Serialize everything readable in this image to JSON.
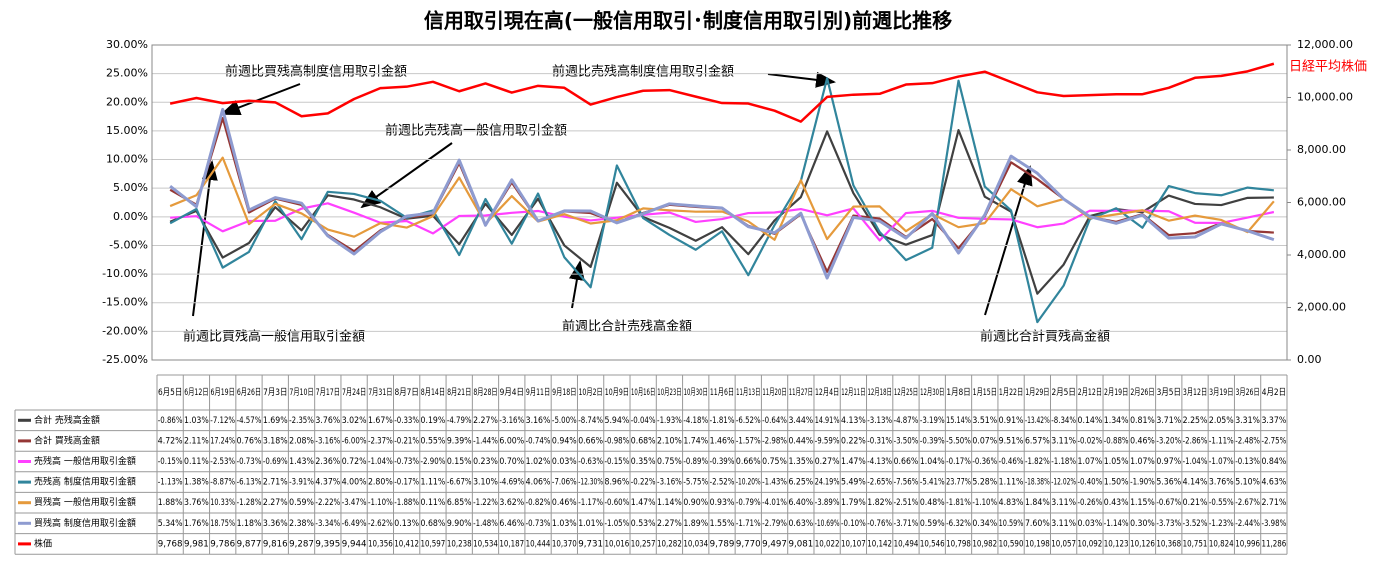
{
  "chart_data": {
    "type": "line",
    "title": "信用取引現在高(一般信用取引･制度信用取引別)前週比推移",
    "categories": [
      "6月5日",
      "6月12日",
      "6月19日",
      "6月26日",
      "7月3日",
      "7月10日",
      "7月17日",
      "7月24日",
      "7月31日",
      "8月7日",
      "8月14日",
      "8月21日",
      "8月28日",
      "9月4日",
      "9月11日",
      "9月18日",
      "10月2日",
      "10月9日",
      "10月16日",
      "10月23日",
      "10月30日",
      "11月6日",
      "11月13日",
      "11月20日",
      "11月27日",
      "12月4日",
      "12月11日",
      "12月18日",
      "12月25日",
      "12月30日",
      "1月8日",
      "1月15日",
      "1月22日",
      "1月29日",
      "2月5日",
      "2月12日",
      "2月19日",
      "2月26日",
      "3月5日",
      "3月12日",
      "3月19日",
      "3月26日",
      "4月2日"
    ],
    "series": [
      {
        "name": "合計 売残高金額",
        "color": "#404040",
        "values": [
          -0.86,
          1.03,
          -7.12,
          -4.57,
          1.69,
          -2.35,
          3.76,
          3.02,
          1.67,
          -0.33,
          0.19,
          -4.79,
          2.27,
          -3.16,
          3.16,
          -5.0,
          -8.74,
          5.94,
          -0.04,
          -1.93,
          -4.18,
          -1.81,
          -6.52,
          -0.64,
          3.44,
          14.91,
          4.13,
          -3.13,
          -4.87,
          -3.19,
          15.14,
          3.51,
          0.91,
          -13.42,
          -8.34,
          0.14,
          1.34,
          0.81,
          3.71,
          2.25,
          2.05,
          3.31,
          3.37
        ],
        "value_labels": [
          "-0.86%",
          "1.03%",
          "-7.12%",
          "-4.57%",
          "1.69%",
          "-2.35%",
          "3.76%",
          "3.02%",
          "1.67%",
          "-0.33%",
          "0.19%",
          "-4.79%",
          "2.27%",
          "-3.16%",
          "3.16%",
          "-5.00%",
          "-8.74%",
          "5.94%",
          "-0.04%",
          "-1.93%",
          "-4.18%",
          "-1.81%",
          "-6.52%",
          "-0.64%",
          "3.44%",
          "14.91%",
          "4.13%",
          "-3.13%",
          "-4.87%",
          "-3.19%",
          "15.14%",
          "3.51%",
          "0.91%",
          "-13.42%",
          "-8.34%",
          "0.14%",
          "1.34%",
          "0.81%",
          "3.71%",
          "2.25%",
          "2.05%",
          "3.31%",
          "3.37%"
        ]
      },
      {
        "name": "合計 買残高金額",
        "color": "#953735",
        "values": [
          4.72,
          2.11,
          17.24,
          0.76,
          3.18,
          2.08,
          -3.16,
          -6.0,
          -2.37,
          -0.21,
          0.55,
          9.39,
          -1.44,
          6.0,
          -0.74,
          0.94,
          0.66,
          -0.98,
          0.68,
          2.1,
          1.74,
          1.46,
          -1.57,
          -2.98,
          0.44,
          -9.59,
          0.22,
          -0.31,
          -3.5,
          -0.39,
          -5.5,
          0.07,
          9.51,
          6.57,
          3.11,
          -0.02,
          -0.88,
          0.46,
          -3.2,
          -2.86,
          -1.11,
          -2.48,
          -2.75
        ],
        "value_labels": [
          "4.72%",
          "2.11%",
          "17.24%",
          "0.76%",
          "3.18%",
          "2.08%",
          "-3.16%",
          "-6.00%",
          "-2.37%",
          "-0.21%",
          "0.55%",
          "9.39%",
          "-1.44%",
          "6.00%",
          "-0.74%",
          "0.94%",
          "0.66%",
          "-0.98%",
          "0.68%",
          "2.10%",
          "1.74%",
          "1.46%",
          "-1.57%",
          "-2.98%",
          "0.44%",
          "-9.59%",
          "0.22%",
          "-0.31%",
          "-3.50%",
          "-0.39%",
          "-5.50%",
          "0.07%",
          "9.51%",
          "6.57%",
          "3.11%",
          "-0.02%",
          "-0.88%",
          "0.46%",
          "-3.20%",
          "-2.86%",
          "-1.11%",
          "-2.48%",
          "-2.75%"
        ]
      },
      {
        "name": "売残高 一般信用取引金額",
        "color": "#ff40ff",
        "values": [
          -0.15,
          0.11,
          -2.53,
          -0.73,
          -0.69,
          1.43,
          2.36,
          0.72,
          -1.04,
          -0.73,
          -2.9,
          0.15,
          0.23,
          0.7,
          1.02,
          0.03,
          -0.63,
          -0.15,
          0.35,
          0.75,
          -0.89,
          -0.39,
          0.66,
          0.75,
          1.35,
          0.27,
          1.47,
          -4.13,
          0.66,
          1.04,
          -0.17,
          -0.36,
          -0.46,
          -1.82,
          -1.18,
          1.07,
          1.05,
          1.07,
          0.97,
          -1.04,
          -1.07,
          -0.13,
          0.84
        ],
        "value_labels": [
          "-0.15%",
          "0.11%",
          "-2.53%",
          "-0.73%",
          "-0.69%",
          "1.43%",
          "2.36%",
          "0.72%",
          "-1.04%",
          "-0.73%",
          "-2.90%",
          "0.15%",
          "0.23%",
          "0.70%",
          "1.02%",
          "0.03%",
          "-0.63%",
          "-0.15%",
          "0.35%",
          "0.75%",
          "-0.89%",
          "-0.39%",
          "0.66%",
          "0.75%",
          "1.35%",
          "0.27%",
          "1.47%",
          "-4.13%",
          "0.66%",
          "1.04%",
          "-0.17%",
          "-0.36%",
          "-0.46%",
          "-1.82%",
          "-1.18%",
          "1.07%",
          "1.05%",
          "1.07%",
          "0.97%",
          "-1.04%",
          "-1.07%",
          "-0.13%",
          "0.84%"
        ]
      },
      {
        "name": "売残高 制度信用取引金額",
        "color": "#31859c",
        "values": [
          -1.13,
          1.38,
          -8.87,
          -6.13,
          2.71,
          -3.91,
          4.37,
          4.0,
          2.8,
          -0.17,
          1.11,
          -6.67,
          3.1,
          -4.69,
          4.06,
          -7.06,
          -12.3,
          8.96,
          -0.22,
          -3.16,
          -5.75,
          -2.52,
          -10.2,
          -1.43,
          6.25,
          24.19,
          5.49,
          -2.65,
          -7.56,
          -5.41,
          23.77,
          5.28,
          1.11,
          -18.38,
          -12.02,
          -0.4,
          1.5,
          -1.9,
          5.36,
          4.14,
          3.76,
          5.1,
          4.63
        ],
        "value_labels": [
          "-1.13%",
          "1.38%",
          "-8.87%",
          "-6.13%",
          "2.71%",
          "-3.91%",
          "4.37%",
          "4.00%",
          "2.80%",
          "-0.17%",
          "1.11%",
          "-6.67%",
          "3.10%",
          "-4.69%",
          "4.06%",
          "-7.06%",
          "-12.30%",
          "8.96%",
          "-0.22%",
          "-3.16%",
          "-5.75%",
          "-2.52%",
          "-10.20%",
          "-1.43%",
          "6.25%",
          "24.19%",
          "5.49%",
          "-2.65%",
          "-7.56%",
          "-5.41%",
          "23.77%",
          "5.28%",
          "1.11%",
          "-18.38%",
          "-12.02%",
          "-0.40%",
          "1.50%",
          "-1.90%",
          "5.36%",
          "4.14%",
          "3.76%",
          "5.10%",
          "4.63%"
        ]
      },
      {
        "name": "買残高 一般信用取引金額",
        "color": "#e59a3c",
        "values": [
          1.88,
          3.76,
          10.33,
          -1.28,
          2.27,
          0.59,
          -2.22,
          -3.47,
          -1.1,
          -1.88,
          0.11,
          6.85,
          -1.22,
          3.62,
          -0.82,
          0.46,
          -1.17,
          -0.6,
          1.47,
          1.14,
          0.9,
          0.93,
          -0.79,
          -4.01,
          6.4,
          -3.89,
          1.79,
          1.82,
          -2.51,
          0.48,
          -1.81,
          -1.1,
          4.83,
          1.84,
          3.11,
          -0.26,
          0.43,
          1.15,
          -0.67,
          0.21,
          -0.55,
          -2.67,
          2.71
        ],
        "value_labels": [
          "1.88%",
          "3.76%",
          "10.33%",
          "-1.28%",
          "2.27%",
          "0.59%",
          "-2.22%",
          "-3.47%",
          "-1.10%",
          "-1.88%",
          "0.11%",
          "6.85%",
          "-1.22%",
          "3.62%",
          "-0.82%",
          "0.46%",
          "-1.17%",
          "-0.60%",
          "1.47%",
          "1.14%",
          "0.90%",
          "0.93%",
          "-0.79%",
          "-4.01%",
          "6.40%",
          "-3.89%",
          "1.79%",
          "1.82%",
          "-2.51%",
          "0.48%",
          "-1.81%",
          "-1.10%",
          "4.83%",
          "1.84%",
          "3.11%",
          "-0.26%",
          "0.43%",
          "1.15%",
          "-0.67%",
          "0.21%",
          "-0.55%",
          "-2.67%",
          "2.71%"
        ]
      },
      {
        "name": "買残高 制度信用取引金額",
        "color": "#8e9bd0",
        "values": [
          5.34,
          1.76,
          18.75,
          1.18,
          3.36,
          2.38,
          -3.34,
          -6.49,
          -2.62,
          0.13,
          0.68,
          9.9,
          -1.48,
          6.46,
          -0.73,
          1.03,
          1.01,
          -1.05,
          0.53,
          2.27,
          1.89,
          1.55,
          -1.71,
          -2.79,
          0.63,
          -10.69,
          -0.1,
          -0.76,
          -3.71,
          0.59,
          -6.32,
          0.34,
          10.59,
          7.6,
          3.11,
          0.03,
          -1.14,
          0.3,
          -3.73,
          -3.52,
          -1.23,
          -2.44,
          -3.98
        ],
        "value_labels": [
          "5.34%",
          "1.76%",
          "18.75%",
          "1.18%",
          "3.36%",
          "2.38%",
          "-3.34%",
          "-6.49%",
          "-2.62%",
          "0.13%",
          "0.68%",
          "9.90%",
          "-1.48%",
          "6.46%",
          "-0.73%",
          "1.03%",
          "1.01%",
          "-1.05%",
          "0.53%",
          "2.27%",
          "1.89%",
          "1.55%",
          "-1.71%",
          "-2.79%",
          "0.63%",
          "-10.69%",
          "-0.10%",
          "-0.76%",
          "-3.71%",
          "0.59%",
          "-6.32%",
          "0.34%",
          "10.59%",
          "7.60%",
          "3.11%",
          "0.03%",
          "-1.14%",
          "0.30%",
          "-3.73%",
          "-3.52%",
          "-1.23%",
          "-2.44%",
          "-3.98%"
        ]
      },
      {
        "name": "株価",
        "color": "#ff0000",
        "axis": "y2",
        "values": [
          9768,
          9981,
          9786,
          9877,
          9816,
          9287,
          9395,
          9944,
          10356,
          10412,
          10597,
          10238,
          10534,
          10187,
          10444,
          10370,
          9731,
          10016,
          10257,
          10282,
          10034,
          9789,
          9770,
          9497,
          9081,
          10022,
          10107,
          10142,
          10494,
          10546,
          10798,
          10982,
          10590,
          10198,
          10057,
          10092,
          10123,
          10126,
          10368,
          10751,
          10824,
          10996,
          11286
        ],
        "value_labels": [
          "9,768",
          "9,981",
          "9,786",
          "9,877",
          "9,816",
          "9,287",
          "9,395",
          "9,944",
          "10,356",
          "10,412",
          "10,597",
          "10,238",
          "10,534",
          "10,187",
          "10,444",
          "10,370",
          "9,731",
          "10,016",
          "10,257",
          "10,282",
          "10,034",
          "9,789",
          "9,770",
          "9,497",
          "9,081",
          "10,022",
          "10,107",
          "10,142",
          "10,494",
          "10,546",
          "10,798",
          "10,982",
          "10,590",
          "10,198",
          "10,057",
          "10,092",
          "10,123",
          "10,126",
          "10,368",
          "10,751",
          "10,824",
          "10,996",
          "11,286"
        ]
      }
    ],
    "ylim": [
      -25,
      30
    ],
    "yticks": [
      {
        "value": -25,
        "label": "-25.00%"
      },
      {
        "value": -20,
        "label": "-20.00%"
      },
      {
        "value": -15,
        "label": "-15.00%"
      },
      {
        "value": -10,
        "label": "-10.00%"
      },
      {
        "value": -5,
        "label": "-5.00%"
      },
      {
        "value": 0,
        "label": "0.00%"
      },
      {
        "value": 5,
        "label": "5.00%"
      },
      {
        "value": 10,
        "label": "10.00%"
      },
      {
        "value": 15,
        "label": "15.00%"
      },
      {
        "value": 20,
        "label": "20.00%"
      },
      {
        "value": 25,
        "label": "25.00%"
      },
      {
        "value": 30,
        "label": "30.00%"
      }
    ],
    "y2lim": [
      0,
      12000
    ],
    "y2ticks": [
      {
        "value": 0,
        "label": "0.00"
      },
      {
        "value": 2000,
        "label": "2,000.00"
      },
      {
        "value": 4000,
        "label": "4,000.00"
      },
      {
        "value": 6000,
        "label": "6,000.00"
      },
      {
        "value": 8000,
        "label": "8,000.00"
      },
      {
        "value": 10000,
        "label": "10,000.00"
      },
      {
        "value": 12000,
        "label": "12,000.00"
      }
    ],
    "grid": true,
    "annotations": [
      "前週比買残高制度信用取引金額",
      "前週比売残高一般信用取引金額",
      "前週比売残高制度信用取引金額",
      "前週比買残高一般信用取引金額",
      "前週比合計売残高金額",
      "前週比合計買残高金額",
      "日経平均株価"
    ]
  }
}
